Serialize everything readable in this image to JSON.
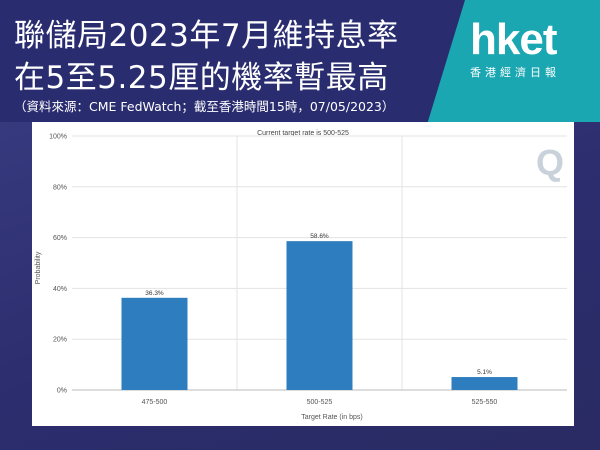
{
  "header": {
    "title_line1": "聯儲局2023年7月維持息率",
    "title_line2": "在5至5.25厘的機率暫最高",
    "source": "（資料來源：CME FedWatch；截至香港時間15時，07/05/2023）"
  },
  "logo": {
    "main": "hket",
    "sub": "香港經濟日報"
  },
  "chart_data": {
    "type": "bar",
    "title": "Current target rate is 500-525",
    "categories": [
      "475-500",
      "500-525",
      "525-550"
    ],
    "values": [
      36.3,
      58.6,
      5.1
    ],
    "value_labels": [
      "36.3%",
      "58.6%",
      "5.1%"
    ],
    "xlabel": "Target Rate (in bps)",
    "ylabel": "Probability",
    "ylim": [
      0,
      100
    ],
    "yticks": [
      0,
      20,
      40,
      60,
      80,
      100
    ],
    "ytick_labels": [
      "0%",
      "20%",
      "40%",
      "60%",
      "80%",
      "100%"
    ],
    "grid": true,
    "bar_color": "#2e7dbf",
    "watermark": "Q"
  }
}
